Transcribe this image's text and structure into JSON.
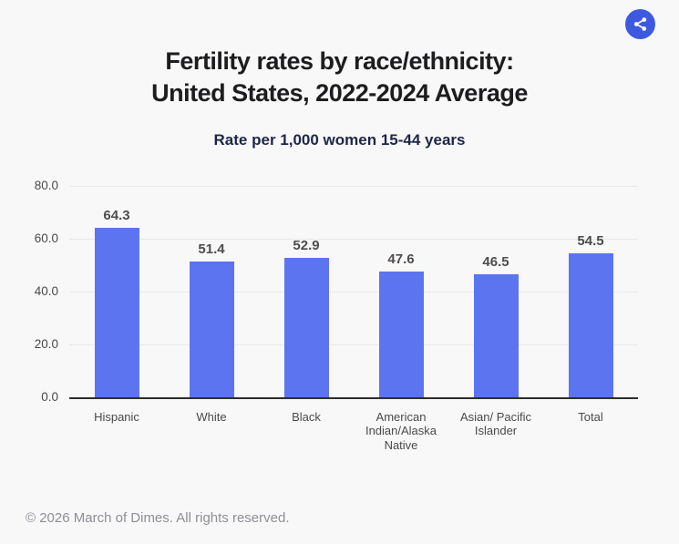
{
  "header": {
    "title_lines": [
      "Fertility rates by race/ethnicity:",
      "United States, 2022-2024 Average"
    ],
    "subtitle": "Rate per 1,000 women 15-44 years"
  },
  "share": {
    "label": "Share",
    "background_color": "#3c59e0"
  },
  "chart_data": {
    "type": "bar",
    "title": "Fertility rates by race/ethnicity: United States, 2022-2024 Average",
    "subtitle": "Rate per 1,000 women 15-44 years",
    "categories": [
      "Hispanic",
      "White",
      "Black",
      "American Indian/Alaska Native",
      "Asian/ Pacific Islander",
      "Total"
    ],
    "values": [
      64.3,
      51.4,
      52.9,
      47.6,
      46.5,
      54.5
    ],
    "value_labels": [
      "64.3",
      "51.4",
      "52.9",
      "47.6",
      "46.5",
      "54.5"
    ],
    "xlabel": "",
    "ylabel": "",
    "ylim": [
      0,
      80
    ],
    "yticks": [
      0,
      20,
      40,
      60,
      80
    ],
    "ytick_labels": [
      "0.0",
      "20.0",
      "40.0",
      "60.0",
      "80.0"
    ],
    "grid": true,
    "legend": "none",
    "bar_color": "#5c74f0",
    "gridline_color": "#e9e9e9",
    "axis_line_color": "#2e2e2e"
  },
  "footer": {
    "copyright": "© 2026 March of Dimes. All rights reserved."
  }
}
